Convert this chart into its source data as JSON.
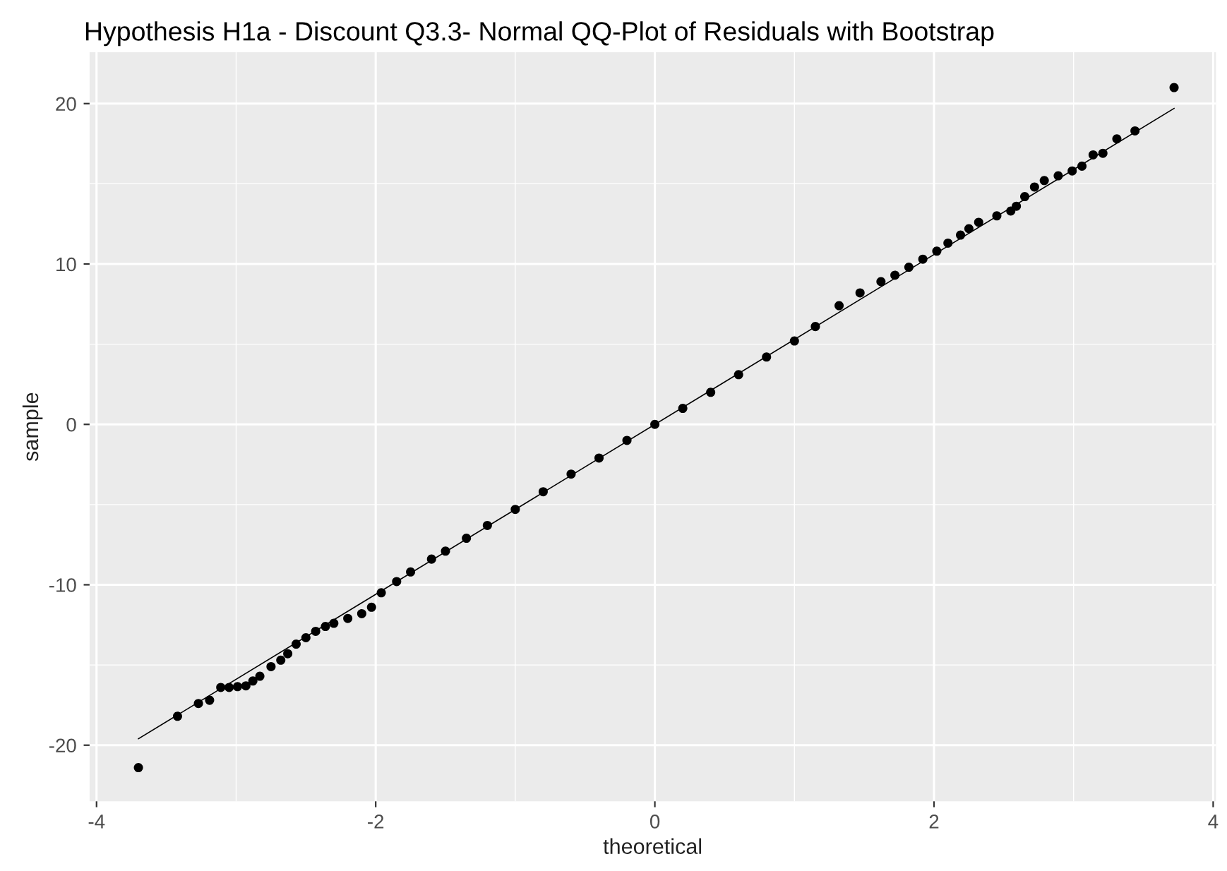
{
  "chart_data": {
    "type": "scatter",
    "title": "Hypothesis H1a - Discount Q3.3- Normal QQ-Plot of Residuals with Bootstrap",
    "xlabel": "theoretical",
    "ylabel": "sample",
    "xlim": [
      -4.05,
      4.02
    ],
    "ylim": [
      -23.5,
      23.2
    ],
    "xticks": [
      -4,
      -2,
      0,
      2,
      4
    ],
    "yticks": [
      -20,
      -10,
      0,
      10,
      20
    ],
    "grid": true,
    "series": [
      {
        "color": "#000000",
        "marker": "circle",
        "x": [
          -3.7,
          -3.42,
          -3.27,
          -3.19,
          -3.11,
          -3.05,
          -2.99,
          -2.93,
          -2.88,
          -2.83,
          -2.75,
          -2.68,
          -2.63,
          -2.57,
          -2.5,
          -2.43,
          -2.36,
          -2.3,
          -2.2,
          -2.1,
          -2.03,
          -1.96,
          -1.85,
          -1.75,
          -1.6,
          -1.5,
          -1.35,
          -1.2,
          -1.0,
          -0.8,
          -0.6,
          -0.4,
          -0.2,
          0.0,
          0.2,
          0.4,
          0.6,
          0.8,
          1.0,
          1.15,
          1.32,
          1.47,
          1.62,
          1.72,
          1.82,
          1.92,
          2.02,
          2.1,
          2.19,
          2.25,
          2.32,
          2.45,
          2.55,
          2.59,
          2.65,
          2.72,
          2.79,
          2.89,
          2.99,
          3.06,
          3.14,
          3.21,
          3.31,
          3.44,
          3.72
        ],
        "values": [
          -21.4,
          -18.2,
          -17.4,
          -17.2,
          -16.4,
          -16.4,
          -16.35,
          -16.3,
          -16.0,
          -15.7,
          -15.1,
          -14.7,
          -14.3,
          -13.7,
          -13.3,
          -12.9,
          -12.6,
          -12.4,
          -12.1,
          -11.8,
          -11.4,
          -10.5,
          -9.8,
          -9.2,
          -8.4,
          -7.9,
          -7.1,
          -6.3,
          -5.3,
          -4.2,
          -3.1,
          -2.1,
          -1.0,
          0.0,
          1.0,
          2.0,
          3.1,
          4.2,
          5.2,
          6.1,
          7.4,
          8.2,
          8.9,
          9.3,
          9.8,
          10.3,
          10.8,
          11.3,
          11.8,
          12.2,
          12.6,
          13.0,
          13.3,
          13.6,
          14.2,
          14.8,
          15.2,
          15.5,
          15.8,
          16.1,
          16.8,
          16.9,
          17.8,
          18.3,
          21.0
        ]
      },
      {
        "type": "line",
        "color": "#000000",
        "line_style": "solid",
        "x": [
          -3.7,
          3.72
        ],
        "values": [
          -19.6,
          19.7
        ]
      }
    ]
  }
}
